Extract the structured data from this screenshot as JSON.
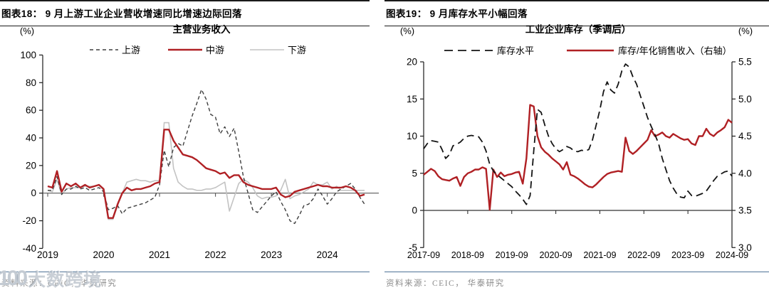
{
  "figures": [
    {
      "header": "图表18：  9 月上游工业企业营收增速同比增速边际回落",
      "source": "资料来源：CEIC，华泰研究",
      "watermark": {
        "logo": "100",
        "text": "大数跨境"
      }
    },
    {
      "header": "图表19：  9 月库存水平小幅回落",
      "source": "资料来源：CEIC， 华泰研究"
    }
  ],
  "chart_data": [
    {
      "type": "line",
      "title": "主营业务收入",
      "y_unit": "(%)",
      "ylim": [
        -40,
        100
      ],
      "yticks": [
        100,
        80,
        60,
        40,
        20,
        0,
        -20,
        -40
      ],
      "x_range": {
        "start": "2019-01",
        "end": "2024-09",
        "freq": "monthly"
      },
      "xticks": [
        "2019",
        "2020",
        "2021",
        "2022",
        "2023",
        "2024"
      ],
      "grid": false,
      "legend_position": "top",
      "series": [
        {
          "key": "upstream",
          "name": "上游",
          "style": "dashed",
          "color": "#3f3f3f",
          "values": [
            2,
            2,
            12,
            -1,
            3,
            3,
            5,
            3,
            4,
            2,
            3,
            4,
            1,
            -12,
            -11,
            -9,
            -15,
            -11,
            -10,
            -9,
            -8,
            -7,
            -5,
            -3,
            6,
            31,
            19,
            33,
            36,
            34,
            45,
            56,
            65,
            75,
            68,
            57,
            55,
            43,
            48,
            41,
            47,
            30,
            12,
            0,
            -12,
            -14,
            -10,
            -6,
            -2,
            1,
            -6,
            -12,
            -20,
            -22,
            -16,
            -9,
            -8,
            -4,
            3,
            -2,
            -8,
            -4,
            1,
            3,
            5,
            7,
            3,
            -3,
            -8
          ]
        },
        {
          "key": "midstream",
          "name": "中游",
          "style": "solid",
          "color": "#b02024",
          "values": [
            5,
            4,
            16,
            1,
            7,
            5,
            7,
            4,
            6,
            4,
            5,
            6,
            3,
            -18,
            -18,
            -8,
            0,
            4,
            2,
            3,
            3,
            4,
            5,
            7,
            8,
            46,
            46,
            38,
            33,
            28,
            27,
            26,
            24,
            21,
            18,
            17,
            16,
            14,
            15,
            11,
            13,
            13,
            8,
            6,
            5,
            4,
            3,
            3,
            3,
            4,
            -1,
            -3,
            -2,
            1,
            2,
            3,
            4,
            5,
            6,
            5,
            5,
            4,
            4,
            4,
            5,
            4,
            2,
            -2,
            -1
          ]
        },
        {
          "key": "downstream",
          "name": "下游",
          "style": "solid",
          "color": "#c3c3c3",
          "values": [
            2,
            1,
            10,
            -1,
            3,
            4,
            4,
            4,
            5,
            5,
            5,
            6,
            2,
            -19,
            -19,
            -9,
            0,
            8,
            9,
            10,
            9,
            9,
            8,
            9,
            9,
            51,
            51,
            18,
            8,
            5,
            3,
            3,
            2,
            2,
            3,
            3,
            4,
            6,
            8,
            -13,
            -3,
            7,
            10,
            8,
            4,
            -2,
            -4,
            -3,
            -3,
            -2,
            2,
            10,
            -4,
            -2,
            -1,
            1,
            3,
            8,
            6,
            6,
            8,
            3,
            5,
            2,
            2,
            2,
            2,
            2,
            2
          ]
        }
      ]
    },
    {
      "type": "line",
      "title": "工业企业库存（季调后）",
      "left_unit": "(%)",
      "right_unit": "(%)",
      "ylim_left": [
        -5,
        20
      ],
      "yticks_left": [
        20,
        15,
        10,
        5,
        0,
        -5
      ],
      "ylim_right": [
        3.0,
        5.5
      ],
      "yticks_right": [
        "5.5",
        "5.0",
        "4.5",
        "4.0",
        "3.5",
        "3.0"
      ],
      "x_range": {
        "start": "2017-09",
        "end": "2024-09",
        "freq": "monthly"
      },
      "xticks": [
        "2017-09",
        "2018-09",
        "2019-09",
        "2020-09",
        "2021-09",
        "2022-09",
        "2023-09",
        "2024-09"
      ],
      "grid": false,
      "legend_position": "top",
      "series": [
        {
          "key": "inventory-level",
          "name": "库存水平",
          "axis": "left",
          "style": "dashed",
          "color": "#141414",
          "values": [
            8.3,
            9.0,
            9.4,
            9.3,
            9.2,
            8.2,
            7.0,
            7.5,
            8.7,
            8.9,
            9.2,
            9.7,
            10.0,
            10.1,
            10.0,
            9.9,
            9.2,
            8.0,
            6.2,
            5.3,
            4.8,
            4.4,
            4.0,
            3.6,
            3.2,
            2.6,
            2.1,
            1.5,
            0.8,
            2.0,
            8.0,
            13.6,
            13.2,
            11.5,
            10.0,
            9.0,
            8.3,
            7.9,
            8.2,
            8.6,
            8.4,
            8.0,
            7.9,
            8.1,
            8.0,
            8.2,
            9.5,
            11.5,
            13.5,
            16.0,
            17.3,
            16.2,
            15.8,
            17.0,
            18.8,
            19.7,
            19.3,
            18.0,
            17.0,
            15.5,
            14.0,
            12.5,
            11.3,
            10.2,
            9.0,
            7.0,
            5.5,
            4.0,
            3.0,
            2.2,
            1.8,
            1.7,
            2.6,
            2.0,
            1.9,
            2.1,
            2.3,
            2.6,
            3.3,
            4.0,
            4.6,
            4.9,
            5.2,
            5.3,
            4.6
          ]
        },
        {
          "key": "inventory-sales-ratio",
          "name": "库存/年化销售收入（右轴）",
          "axis": "right",
          "style": "solid",
          "color": "#b02024",
          "values": [
            3.98,
            4.02,
            4.06,
            4.03,
            3.96,
            3.92,
            3.91,
            3.9,
            3.93,
            3.95,
            3.83,
            3.95,
            4.0,
            4.02,
            4.05,
            4.05,
            4.08,
            4.06,
            3.51,
            4.05,
            3.95,
            4.01,
            3.96,
            3.98,
            3.99,
            4.01,
            4.02,
            3.86,
            4.2,
            4.92,
            4.9,
            4.5,
            4.35,
            4.29,
            4.25,
            4.2,
            4.16,
            4.12,
            4.05,
            4.15,
            3.98,
            3.96,
            3.93,
            3.89,
            3.85,
            3.82,
            3.81,
            3.85,
            3.9,
            3.95,
            3.99,
            4.01,
            4.02,
            4.03,
            4.02,
            4.48,
            4.3,
            4.26,
            4.3,
            4.35,
            4.4,
            4.45,
            4.58,
            4.5,
            4.52,
            4.55,
            4.5,
            4.48,
            4.53,
            4.5,
            4.47,
            4.45,
            4.46,
            4.4,
            4.38,
            4.5,
            4.5,
            4.6,
            4.53,
            4.5,
            4.55,
            4.58,
            4.62,
            4.72,
            4.68
          ]
        }
      ]
    }
  ]
}
